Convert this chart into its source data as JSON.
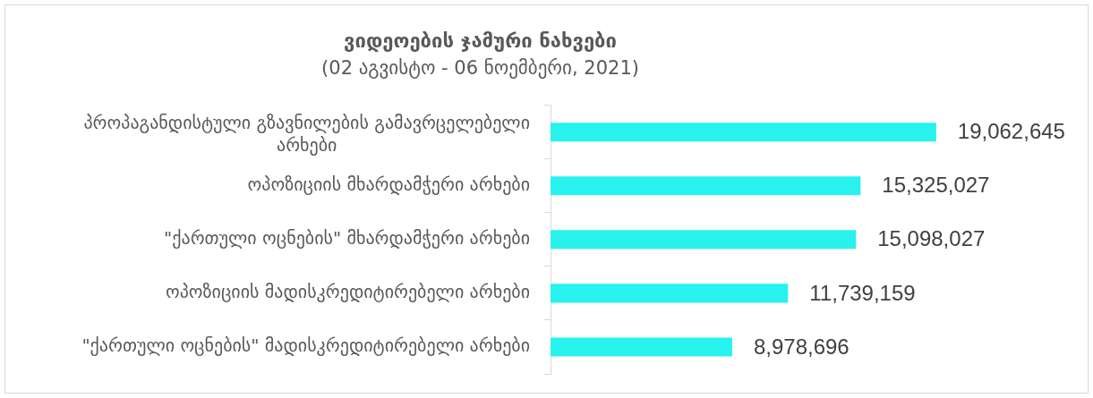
{
  "chart_data": {
    "type": "bar",
    "orientation": "horizontal",
    "title": "ვიდეოების ჯამური ნახვები",
    "subtitle": "(02 აგვისტო - 06 ნოემბერი, 2021)",
    "categories": [
      "პროპაგანდისტული გზავნილების გამავრცელებელი არხები",
      "ოპოზიციის მხარდამჭერი არხები",
      "\"ქართული ოცნების\" მხარდამჭერი არხები",
      "ოპოზიციის მადისკრედიტირებელი არხები",
      "\"ქართული ოცნების\" მადისკრედიტირებელი არხები"
    ],
    "values": [
      19062645,
      15325027,
      15098027,
      11739159,
      8978696
    ],
    "color": "#27f2ed",
    "value_labels": [
      "19,062,645",
      "15,325,027",
      "15,098,027",
      "11,739,159",
      "8,978,696"
    ]
  }
}
